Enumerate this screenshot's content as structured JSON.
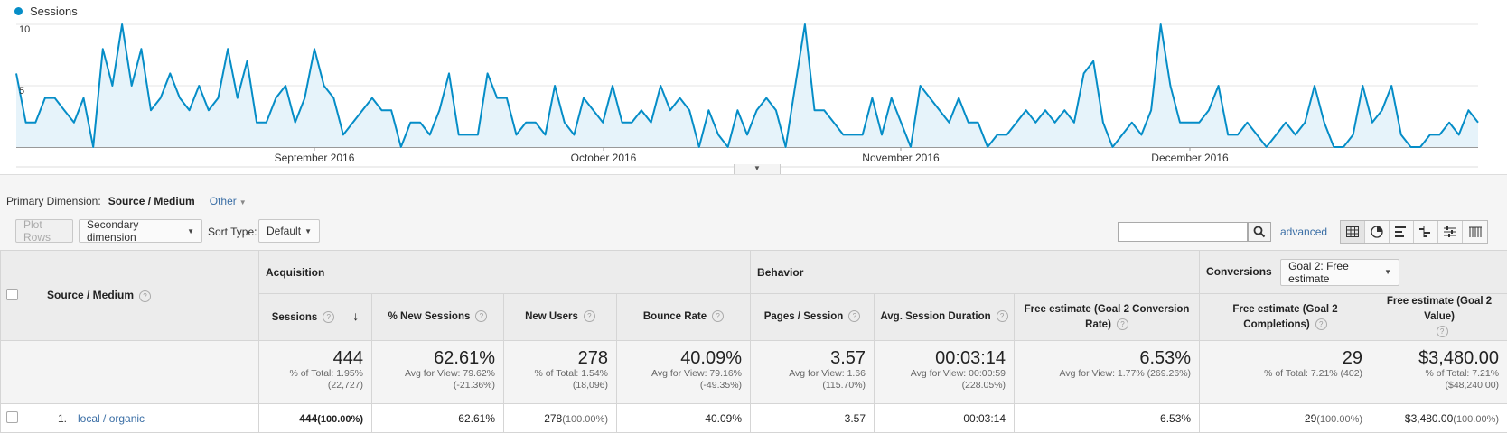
{
  "chart_data": {
    "type": "area",
    "title": "",
    "legend": [
      "Sessions"
    ],
    "series_color": "#058dc7",
    "y_ticks": [
      "10",
      "5"
    ],
    "ylim": [
      0,
      10
    ],
    "x_labels": [
      "September 2016",
      "October 2016",
      "November 2016",
      "December 2016"
    ],
    "values": [
      6,
      2,
      2,
      4,
      4,
      3,
      2,
      4,
      0,
      8,
      5,
      10,
      5,
      8,
      3,
      4,
      6,
      4,
      3,
      5,
      3,
      4,
      8,
      4,
      7,
      2,
      2,
      4,
      5,
      2,
      4,
      8,
      5,
      4,
      1,
      2,
      3,
      4,
      3,
      3,
      0,
      2,
      2,
      1,
      3,
      6,
      1,
      1,
      1,
      6,
      4,
      4,
      1,
      2,
      2,
      1,
      5,
      2,
      1,
      4,
      3,
      2,
      5,
      2,
      2,
      3,
      2,
      5,
      3,
      4,
      3,
      0,
      3,
      1,
      0,
      3,
      1,
      3,
      4,
      3,
      0,
      5,
      10,
      3,
      3,
      2,
      1,
      1,
      1,
      4,
      1,
      4,
      2,
      0,
      5,
      4,
      3,
      2,
      4,
      2,
      2,
      0,
      1,
      1,
      2,
      3,
      2,
      3,
      2,
      3,
      2,
      6,
      7,
      2,
      0,
      1,
      2,
      1,
      3,
      10,
      5,
      2,
      2,
      2,
      3,
      5,
      1,
      1,
      2,
      1,
      0,
      1,
      2,
      1,
      2,
      5,
      2,
      0,
      0,
      1,
      5,
      2,
      3,
      5,
      1,
      0,
      0,
      1,
      1,
      2,
      1,
      3,
      2
    ],
    "month_positions": [
      "2016-09-01",
      "2016-10-01",
      "2016-11-01",
      "2016-12-01"
    ]
  },
  "legend_label": "Sessions",
  "primary_dimension": {
    "label": "Primary Dimension:",
    "active": "Source / Medium",
    "other": "Other"
  },
  "toolbar": {
    "plot_rows": "Plot Rows",
    "secondary_dimension": "Secondary dimension",
    "sort_type_label": "Sort Type:",
    "sort_type_value": "Default",
    "search_value": "",
    "advanced": "advanced"
  },
  "table": {
    "source_medium_header": "Source / Medium",
    "groups": {
      "acquisition": "Acquisition",
      "behavior": "Behavior",
      "conversions": "Conversions",
      "goal_select": "Goal 2: Free estimate"
    },
    "columns": {
      "sessions": "Sessions",
      "new_sessions": "% New Sessions",
      "new_users": "New Users",
      "bounce_rate": "Bounce Rate",
      "pages_session": "Pages / Session",
      "avg_duration": "Avg. Session Duration",
      "goal_conv_rate_1": "Free estimate (Goal 2 Conversion",
      "goal_conv_rate_2": "Rate)",
      "goal_completions_1": "Free estimate (Goal 2",
      "goal_completions_2": "Completions)",
      "goal_value": "Free estimate (Goal 2 Value)"
    },
    "totals": {
      "sessions": {
        "big": "444",
        "sub1": "% of Total: 1.95%",
        "sub2": "(22,727)"
      },
      "new_sessions": {
        "big": "62.61%",
        "sub1": "Avg for View: 79.62%",
        "sub2": "(-21.36%)"
      },
      "new_users": {
        "big": "278",
        "sub1": "% of Total: 1.54%",
        "sub2": "(18,096)"
      },
      "bounce_rate": {
        "big": "40.09%",
        "sub1": "Avg for View: 79.16%",
        "sub2": "(-49.35%)"
      },
      "pages_session": {
        "big": "3.57",
        "sub1": "Avg for View: 1.66",
        "sub2": "(115.70%)"
      },
      "avg_duration": {
        "big": "00:03:14",
        "sub1": "Avg for View: 00:00:59",
        "sub2": "(228.05%)"
      },
      "goal_conv_rate": {
        "big": "6.53%",
        "sub1": "Avg for View: 1.77% (269.26%)",
        "sub2": ""
      },
      "goal_completions": {
        "big": "29",
        "sub1": "% of Total: 7.21% (402)",
        "sub2": ""
      },
      "goal_value": {
        "big": "$3,480.00",
        "sub1": "% of Total: 7.21%",
        "sub2": "($48,240.00)"
      }
    },
    "rows": [
      {
        "index": "1.",
        "source": "local / organic",
        "sessions": "444",
        "sessions_pct": "(100.00%)",
        "new_sessions": "62.61%",
        "new_users": "278",
        "new_users_pct": "(100.00%)",
        "bounce_rate": "40.09%",
        "pages_session": "3.57",
        "avg_duration": "00:03:14",
        "goal_conv_rate": "6.53%",
        "goal_completions": "29",
        "goal_completions_pct": "(100.00%)",
        "goal_value": "$3,480.00",
        "goal_value_pct": "(100.00%)"
      }
    ]
  }
}
